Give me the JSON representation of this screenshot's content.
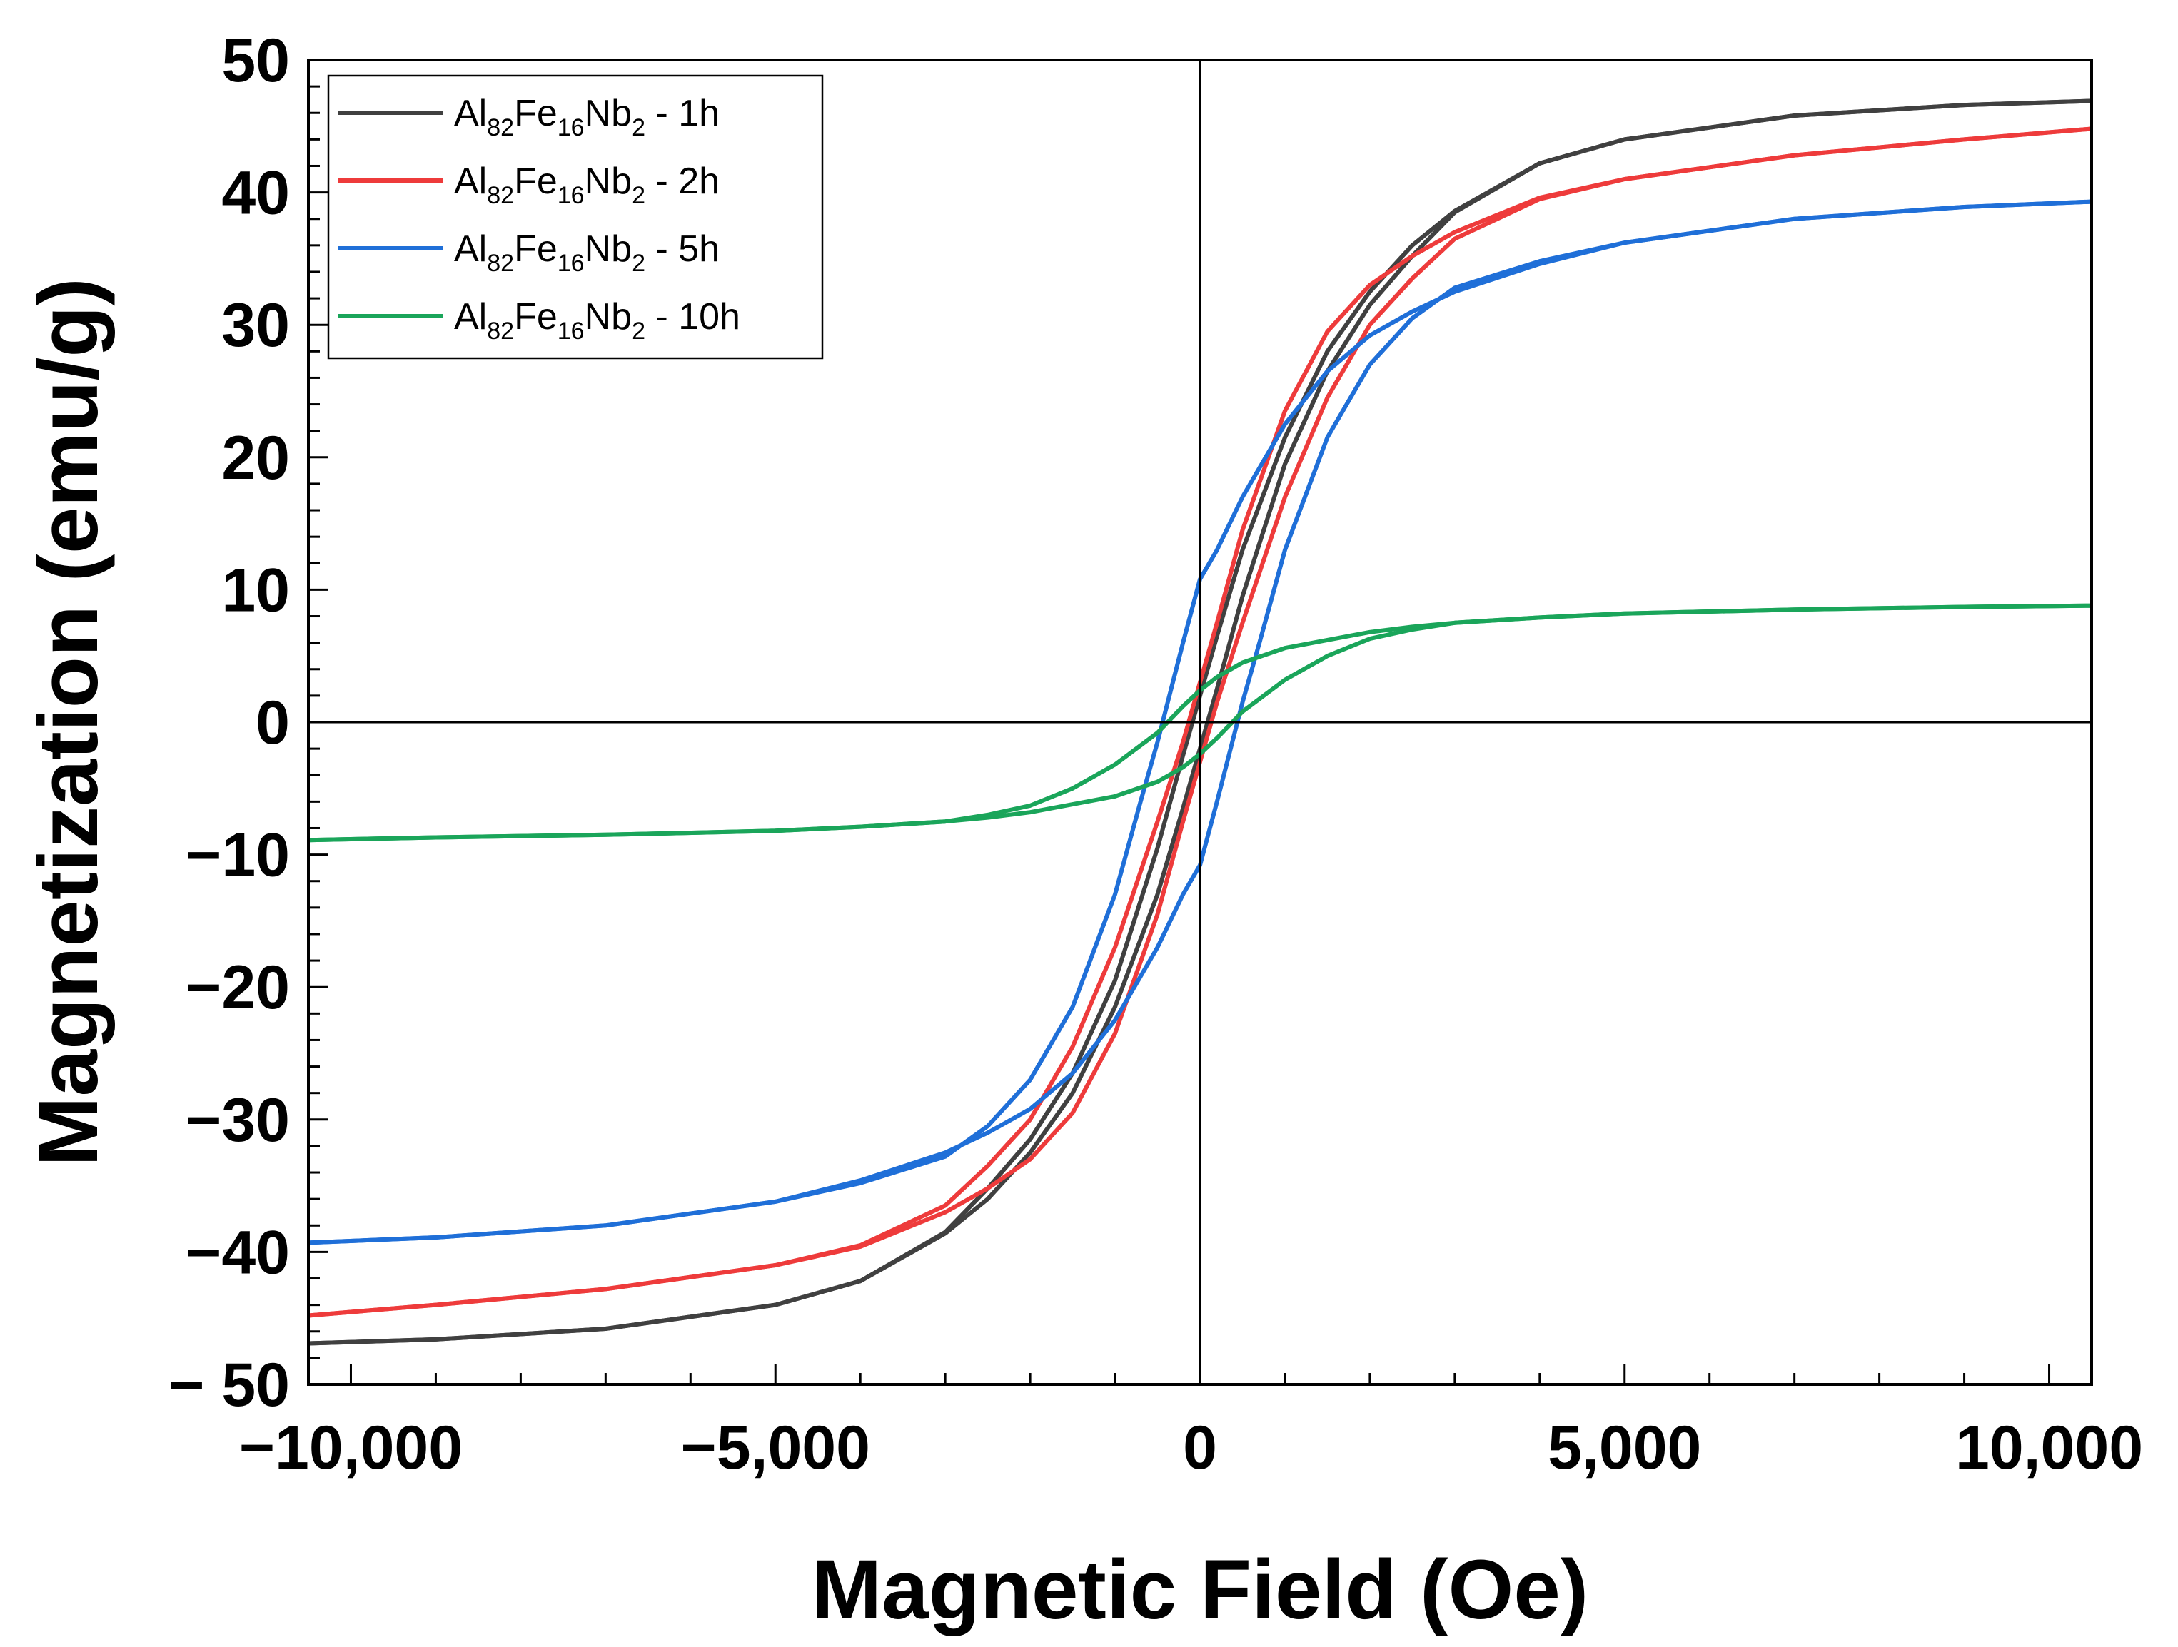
{
  "chart_data": {
    "type": "line",
    "title": "",
    "xlabel": "Magnetic Field (Oe)",
    "ylabel": "Magnetization (emu/g)",
    "xlim": [
      -10500,
      10500
    ],
    "ylim": [
      -50,
      50
    ],
    "x_ticks": [
      -10000,
      -5000,
      0,
      5000,
      10000
    ],
    "x_tick_labels": [
      "−10,000",
      "−5,000",
      "0",
      "5,000",
      "10,000"
    ],
    "y_ticks": [
      50,
      40,
      30,
      20,
      10,
      0,
      -10,
      -20,
      -30,
      -40,
      -50
    ],
    "y_tick_labels": [
      "50",
      "40",
      "30",
      "20",
      "10",
      "0",
      "−10",
      "−20",
      "−30",
      "−40",
      "− 50"
    ],
    "grid": false,
    "legend_position": "top-left",
    "series": [
      {
        "name": "Al82Fe16Nb2 - 1h",
        "legend_parts": [
          "Al",
          "82",
          "Fe",
          "16",
          "Nb",
          "2",
          " - 1h"
        ],
        "color": "#404040",
        "descending": {
          "x": [
            10500,
            9000,
            7000,
            5000,
            4000,
            3000,
            2500,
            2000,
            1500,
            1000,
            500,
            200,
            0,
            -200,
            -500,
            -1000,
            -1500,
            -2000,
            -2500,
            -3000,
            -4000,
            -5000,
            -7000,
            -9000,
            -10500
          ],
          "y": [
            46.9,
            46.6,
            45.8,
            44.0,
            42.2,
            38.6,
            36.0,
            32.5,
            28.0,
            21.5,
            13.0,
            6.5,
            2.0,
            -2.5,
            -9.5,
            -19.5,
            -26.5,
            -31.5,
            -35.2,
            -38.5,
            -42.2,
            -44.0,
            -45.8,
            -46.6,
            -46.9
          ]
        },
        "ascending": {
          "x": [
            -10500,
            -9000,
            -7000,
            -5000,
            -4000,
            -3000,
            -2500,
            -2000,
            -1500,
            -1000,
            -500,
            -200,
            0,
            200,
            500,
            1000,
            1500,
            2000,
            2500,
            3000,
            4000,
            5000,
            7000,
            9000,
            10500
          ],
          "y": [
            -46.9,
            -46.6,
            -45.8,
            -44.0,
            -42.2,
            -38.6,
            -36.0,
            -32.5,
            -28.0,
            -21.5,
            -13.0,
            -6.5,
            -2.0,
            2.5,
            9.5,
            19.5,
            26.5,
            31.5,
            35.2,
            38.5,
            42.2,
            44.0,
            45.8,
            46.6,
            46.9
          ]
        }
      },
      {
        "name": "Al82Fe16Nb2 - 2h",
        "legend_parts": [
          "Al",
          "82",
          "Fe",
          "16",
          "Nb",
          "2",
          " - 2h"
        ],
        "color": "#ee3b3b",
        "descending": {
          "x": [
            10500,
            9000,
            7000,
            5000,
            4000,
            3000,
            2500,
            2000,
            1500,
            1000,
            500,
            200,
            0,
            -200,
            -500,
            -1000,
            -1500,
            -2000,
            -2500,
            -3000,
            -4000,
            -5000,
            -7000,
            -9000,
            -10500
          ],
          "y": [
            44.8,
            44.0,
            42.8,
            41.0,
            39.6,
            37.0,
            35.2,
            33.0,
            29.5,
            23.5,
            14.5,
            7.5,
            3.0,
            -1.5,
            -7.5,
            -17.0,
            -24.5,
            -30.0,
            -33.5,
            -36.5,
            -39.5,
            -41.0,
            -42.8,
            -44.0,
            -44.8
          ]
        },
        "ascending": {
          "x": [
            -10500,
            -9000,
            -7000,
            -5000,
            -4000,
            -3000,
            -2500,
            -2000,
            -1500,
            -1000,
            -500,
            -200,
            0,
            200,
            500,
            1000,
            1500,
            2000,
            2500,
            3000,
            4000,
            5000,
            7000,
            9000,
            10500
          ],
          "y": [
            -44.8,
            -44.0,
            -42.8,
            -41.0,
            -39.6,
            -37.0,
            -35.2,
            -33.0,
            -29.5,
            -23.5,
            -14.5,
            -7.5,
            -3.0,
            1.5,
            7.5,
            17.0,
            24.5,
            30.0,
            33.5,
            36.5,
            39.5,
            41.0,
            42.8,
            44.0,
            44.8
          ]
        }
      },
      {
        "name": "Al82Fe16Nb2 - 5h",
        "legend_parts": [
          "Al",
          "82",
          "Fe",
          "16",
          "Nb",
          "2",
          " - 5h"
        ],
        "color": "#1f6fd8",
        "descending": {
          "x": [
            10500,
            9000,
            7000,
            5000,
            4000,
            3000,
            2500,
            2000,
            1500,
            1000,
            500,
            200,
            0,
            -200,
            -500,
            -700,
            -1000,
            -1500,
            -2000,
            -2500,
            -3000,
            -4000,
            -5000,
            -7000,
            -9000,
            -10500
          ],
          "y": [
            39.3,
            38.9,
            38.0,
            36.2,
            34.6,
            32.5,
            31.0,
            29.2,
            26.5,
            22.5,
            17.0,
            13.0,
            10.8,
            6.0,
            -1.5,
            -6.0,
            -13.0,
            -21.5,
            -27.0,
            -30.5,
            -32.8,
            -34.8,
            -36.2,
            -38.0,
            -38.9,
            -39.3
          ]
        },
        "ascending": {
          "x": [
            -10500,
            -9000,
            -7000,
            -5000,
            -4000,
            -3000,
            -2500,
            -2000,
            -1500,
            -1000,
            -500,
            -200,
            0,
            200,
            500,
            700,
            1000,
            1500,
            2000,
            2500,
            3000,
            4000,
            5000,
            7000,
            9000,
            10500
          ],
          "y": [
            -39.3,
            -38.9,
            -38.0,
            -36.2,
            -34.6,
            -32.5,
            -31.0,
            -29.2,
            -26.5,
            -22.5,
            -17.0,
            -13.0,
            -10.8,
            -6.0,
            1.5,
            6.0,
            13.0,
            21.5,
            27.0,
            30.5,
            32.8,
            34.8,
            36.2,
            38.0,
            38.9,
            39.3
          ]
        }
      },
      {
        "name": "Al82Fe16Nb2 - 10h",
        "legend_parts": [
          "Al",
          "82",
          "Fe",
          "16",
          "Nb",
          "2",
          " - 10h"
        ],
        "color": "#1aa55a",
        "descending": {
          "x": [
            10500,
            9000,
            7000,
            5000,
            4000,
            3000,
            2500,
            2000,
            1500,
            1000,
            500,
            200,
            0,
            -200,
            -500,
            -1000,
            -1500,
            -2000,
            -2500,
            -3000,
            -4000,
            -5000,
            -7000,
            -9000,
            -10500
          ],
          "y": [
            8.8,
            8.7,
            8.5,
            8.2,
            7.9,
            7.5,
            7.2,
            6.8,
            6.2,
            5.6,
            4.5,
            3.4,
            2.4,
            1.2,
            -0.8,
            -3.2,
            -5.0,
            -6.3,
            -7.0,
            -7.5,
            -7.9,
            -8.2,
            -8.5,
            -8.7,
            -8.9
          ]
        },
        "ascending": {
          "x": [
            -10500,
            -9000,
            -7000,
            -5000,
            -4000,
            -3000,
            -2500,
            -2000,
            -1500,
            -1000,
            -500,
            -200,
            0,
            200,
            500,
            1000,
            1500,
            2000,
            2500,
            3000,
            4000,
            5000,
            7000,
            9000,
            10500
          ],
          "y": [
            -8.9,
            -8.7,
            -8.5,
            -8.2,
            -7.9,
            -7.5,
            -7.2,
            -6.8,
            -6.2,
            -5.6,
            -4.5,
            -3.4,
            -2.4,
            -1.2,
            0.8,
            3.2,
            5.0,
            6.3,
            7.0,
            7.5,
            7.9,
            8.2,
            8.5,
            8.7,
            8.8
          ]
        }
      }
    ]
  }
}
